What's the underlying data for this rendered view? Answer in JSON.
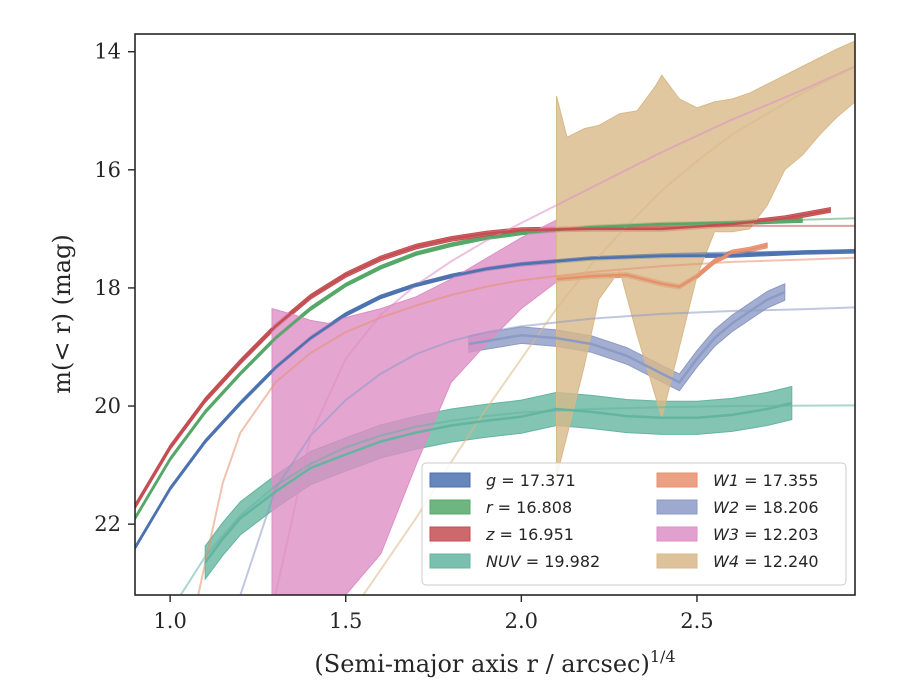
{
  "chart_data": {
    "type": "line",
    "xlabel": "(Semi-major axis r / arcsec)",
    "xlabel_superscript": "1/4",
    "ylabel": "m(< r) (mag)",
    "xlim": [
      0.9,
      2.95
    ],
    "ylim": [
      23.2,
      13.7
    ],
    "y_inverted": true,
    "xticks": [
      1.0,
      1.5,
      2.0,
      2.5
    ],
    "xtick_labels": [
      "1.0",
      "1.5",
      "2.0",
      "2.5"
    ],
    "yticks": [
      14,
      16,
      18,
      20,
      22
    ],
    "ytick_labels": [
      "14",
      "16",
      "18",
      "20",
      "22"
    ],
    "grid": false,
    "legend_position": "lower-right",
    "series": [
      {
        "name": "g = 17.371",
        "color": "#4c72b0",
        "model": [
          [
            0.9,
            22.4
          ],
          [
            1.0,
            21.4
          ],
          [
            1.1,
            20.6
          ],
          [
            1.2,
            19.95
          ],
          [
            1.3,
            19.35
          ],
          [
            1.4,
            18.85
          ],
          [
            1.5,
            18.45
          ],
          [
            1.6,
            18.15
          ],
          [
            1.7,
            17.95
          ],
          [
            1.8,
            17.8
          ],
          [
            1.9,
            17.67
          ],
          [
            2.0,
            17.58
          ],
          [
            2.2,
            17.48
          ],
          [
            2.4,
            17.43
          ],
          [
            2.6,
            17.4
          ],
          [
            2.95,
            17.37
          ]
        ],
        "data": [
          [
            0.9,
            22.4
          ],
          [
            1.0,
            21.4
          ],
          [
            1.1,
            20.6
          ],
          [
            1.2,
            19.95
          ],
          [
            1.3,
            19.35
          ],
          [
            1.4,
            18.85
          ],
          [
            1.5,
            18.45
          ],
          [
            1.6,
            18.15
          ],
          [
            1.7,
            17.95
          ],
          [
            1.8,
            17.8
          ],
          [
            1.9,
            17.68
          ],
          [
            2.0,
            17.6
          ],
          [
            2.2,
            17.5
          ],
          [
            2.4,
            17.46
          ],
          [
            2.6,
            17.45
          ],
          [
            2.8,
            17.4
          ],
          [
            2.95,
            17.38
          ]
        ],
        "band_halfwidth": 0.03
      },
      {
        "name": "r = 16.808",
        "color": "#55a868",
        "model": [
          [
            0.9,
            21.9
          ],
          [
            1.0,
            20.9
          ],
          [
            1.1,
            20.1
          ],
          [
            1.2,
            19.45
          ],
          [
            1.3,
            18.85
          ],
          [
            1.4,
            18.35
          ],
          [
            1.5,
            17.95
          ],
          [
            1.6,
            17.65
          ],
          [
            1.7,
            17.42
          ],
          [
            1.8,
            17.27
          ],
          [
            1.9,
            17.15
          ],
          [
            2.0,
            17.07
          ],
          [
            2.2,
            16.97
          ],
          [
            2.4,
            16.92
          ],
          [
            2.6,
            16.88
          ],
          [
            2.95,
            16.82
          ]
        ],
        "data": [
          [
            0.9,
            21.9
          ],
          [
            1.0,
            20.9
          ],
          [
            1.1,
            20.1
          ],
          [
            1.2,
            19.45
          ],
          [
            1.3,
            18.85
          ],
          [
            1.4,
            18.35
          ],
          [
            1.5,
            17.95
          ],
          [
            1.6,
            17.65
          ],
          [
            1.7,
            17.42
          ],
          [
            1.8,
            17.27
          ],
          [
            1.9,
            17.15
          ],
          [
            2.0,
            17.07
          ],
          [
            2.2,
            16.97
          ],
          [
            2.4,
            16.92
          ],
          [
            2.6,
            16.9
          ],
          [
            2.8,
            16.86
          ]
        ],
        "band_halfwidth": 0.03
      },
      {
        "name": "z = 16.951",
        "color": "#c44e52",
        "model": [
          [
            0.9,
            21.7
          ],
          [
            1.0,
            20.7
          ],
          [
            1.1,
            19.9
          ],
          [
            1.2,
            19.25
          ],
          [
            1.3,
            18.65
          ],
          [
            1.4,
            18.15
          ],
          [
            1.5,
            17.78
          ],
          [
            1.6,
            17.5
          ],
          [
            1.7,
            17.3
          ],
          [
            1.8,
            17.17
          ],
          [
            1.9,
            17.08
          ],
          [
            2.0,
            17.02
          ],
          [
            2.2,
            16.98
          ],
          [
            2.4,
            16.96
          ],
          [
            2.6,
            16.95
          ],
          [
            2.95,
            16.95
          ]
        ],
        "data": [
          [
            0.9,
            21.7
          ],
          [
            1.0,
            20.7
          ],
          [
            1.1,
            19.9
          ],
          [
            1.2,
            19.25
          ],
          [
            1.3,
            18.65
          ],
          [
            1.4,
            18.15
          ],
          [
            1.5,
            17.78
          ],
          [
            1.6,
            17.5
          ],
          [
            1.7,
            17.3
          ],
          [
            1.8,
            17.17
          ],
          [
            1.9,
            17.08
          ],
          [
            2.0,
            17.02
          ],
          [
            2.2,
            17.0
          ],
          [
            2.4,
            17.0
          ],
          [
            2.6,
            16.92
          ],
          [
            2.75,
            16.82
          ],
          [
            2.88,
            16.68
          ]
        ],
        "band_halfwidth": 0.04
      },
      {
        "name": "NUV = 19.982",
        "color": "#64b5a0",
        "model": [
          [
            1.03,
            23.2
          ],
          [
            1.1,
            22.55
          ],
          [
            1.2,
            21.85
          ],
          [
            1.3,
            21.35
          ],
          [
            1.4,
            20.98
          ],
          [
            1.5,
            20.7
          ],
          [
            1.6,
            20.5
          ],
          [
            1.7,
            20.35
          ],
          [
            1.8,
            20.25
          ],
          [
            1.9,
            20.17
          ],
          [
            2.0,
            20.11
          ],
          [
            2.2,
            20.05
          ],
          [
            2.4,
            20.02
          ],
          [
            2.6,
            20.0
          ],
          [
            2.95,
            19.99
          ]
        ],
        "data": [
          [
            1.1,
            22.65
          ],
          [
            1.15,
            22.25
          ],
          [
            1.2,
            21.9
          ],
          [
            1.3,
            21.45
          ],
          [
            1.4,
            21.05
          ],
          [
            1.5,
            20.82
          ],
          [
            1.6,
            20.6
          ],
          [
            1.7,
            20.45
          ],
          [
            1.8,
            20.33
          ],
          [
            1.9,
            20.25
          ],
          [
            2.0,
            20.18
          ],
          [
            2.1,
            20.05
          ],
          [
            2.2,
            20.1
          ],
          [
            2.3,
            20.17
          ],
          [
            2.4,
            20.2
          ],
          [
            2.5,
            20.2
          ],
          [
            2.6,
            20.15
          ],
          [
            2.7,
            20.05
          ],
          [
            2.77,
            19.95
          ]
        ],
        "band_halfwidth": 0.28
      },
      {
        "name": "W1 = 17.355",
        "color": "#e88f6e",
        "model": [
          [
            1.08,
            23.2
          ],
          [
            1.15,
            21.3
          ],
          [
            1.2,
            20.45
          ],
          [
            1.3,
            19.6
          ],
          [
            1.4,
            19.1
          ],
          [
            1.5,
            18.75
          ],
          [
            1.6,
            18.5
          ],
          [
            1.7,
            18.3
          ],
          [
            1.8,
            18.12
          ],
          [
            1.9,
            17.98
          ],
          [
            2.0,
            17.87
          ],
          [
            2.2,
            17.73
          ],
          [
            2.4,
            17.63
          ],
          [
            2.6,
            17.56
          ],
          [
            2.8,
            17.52
          ],
          [
            2.95,
            17.49
          ]
        ],
        "data": [
          [
            2.1,
            17.85
          ],
          [
            2.2,
            17.8
          ],
          [
            2.3,
            17.78
          ],
          [
            2.4,
            17.93
          ],
          [
            2.45,
            17.98
          ],
          [
            2.5,
            17.8
          ],
          [
            2.55,
            17.55
          ],
          [
            2.6,
            17.4
          ],
          [
            2.65,
            17.35
          ],
          [
            2.7,
            17.28
          ]
        ],
        "band_halfwidth": 0.04
      },
      {
        "name": "W2 = 18.206",
        "color": "#8c9ac6",
        "model": [
          [
            1.2,
            23.2
          ],
          [
            1.3,
            21.4
          ],
          [
            1.4,
            20.5
          ],
          [
            1.5,
            19.9
          ],
          [
            1.6,
            19.45
          ],
          [
            1.7,
            19.12
          ],
          [
            1.8,
            18.9
          ],
          [
            1.9,
            18.75
          ],
          [
            2.0,
            18.65
          ],
          [
            2.2,
            18.52
          ],
          [
            2.4,
            18.44
          ],
          [
            2.6,
            18.39
          ],
          [
            2.8,
            18.36
          ],
          [
            2.95,
            18.33
          ]
        ],
        "data": [
          [
            1.85,
            18.95
          ],
          [
            1.9,
            18.9
          ],
          [
            2.0,
            18.8
          ],
          [
            2.1,
            18.85
          ],
          [
            2.2,
            18.95
          ],
          [
            2.3,
            19.15
          ],
          [
            2.35,
            19.3
          ],
          [
            2.4,
            19.45
          ],
          [
            2.45,
            19.6
          ],
          [
            2.5,
            19.2
          ],
          [
            2.55,
            18.85
          ],
          [
            2.6,
            18.6
          ],
          [
            2.65,
            18.4
          ],
          [
            2.7,
            18.2
          ],
          [
            2.75,
            18.07
          ]
        ],
        "band_halfwidth": 0.14
      },
      {
        "name": "W3 = 12.203",
        "color": "#dd8fc5",
        "model": [
          [
            1.3,
            23.2
          ],
          [
            1.4,
            20.5
          ],
          [
            1.5,
            19.2
          ],
          [
            1.6,
            18.45
          ],
          [
            1.7,
            17.95
          ],
          [
            1.8,
            17.55
          ],
          [
            1.9,
            17.2
          ],
          [
            2.0,
            16.9
          ],
          [
            2.2,
            16.3
          ],
          [
            2.4,
            15.7
          ],
          [
            2.6,
            15.15
          ],
          [
            2.8,
            14.65
          ],
          [
            2.95,
            14.25
          ]
        ],
        "data": [
          [
            1.29,
            20.0
          ],
          [
            1.35,
            20.6
          ],
          [
            1.4,
            21.0
          ],
          [
            1.45,
            21.0
          ],
          [
            1.5,
            20.8
          ],
          [
            1.6,
            20.3
          ],
          [
            1.7,
            19.6
          ],
          [
            1.8,
            18.8
          ],
          [
            1.9,
            18.2
          ],
          [
            2.0,
            17.8
          ],
          [
            2.1,
            17.4
          ]
        ],
        "band_lower": [
          18.35,
          18.45,
          18.55,
          18.6,
          18.5,
          18.35,
          18.15,
          17.85,
          17.5,
          17.15,
          16.85
        ],
        "band_upper": [
          23.2,
          23.2,
          23.2,
          23.2,
          23.2,
          22.5,
          21.0,
          19.6,
          18.95,
          18.35,
          17.9
        ]
      },
      {
        "name": "W4 = 12.240",
        "color": "#d8b988",
        "model": [
          [
            1.55,
            23.2
          ],
          [
            1.7,
            21.9
          ],
          [
            1.8,
            20.95
          ],
          [
            1.9,
            20.05
          ],
          [
            2.0,
            19.2
          ],
          [
            2.1,
            18.35
          ],
          [
            2.2,
            17.6
          ],
          [
            2.3,
            16.95
          ],
          [
            2.4,
            16.35
          ],
          [
            2.5,
            15.85
          ],
          [
            2.6,
            15.4
          ],
          [
            2.7,
            15.05
          ],
          [
            2.8,
            14.7
          ],
          [
            2.95,
            14.25
          ]
        ],
        "data": [
          [
            2.1,
            18.4
          ],
          [
            2.13,
            18.2
          ],
          [
            2.18,
            17.8
          ],
          [
            2.22,
            17.4
          ],
          [
            2.28,
            16.9
          ],
          [
            2.33,
            16.8
          ],
          [
            2.38,
            17.3
          ],
          [
            2.4,
            17.4
          ],
          [
            2.45,
            16.8
          ],
          [
            2.5,
            16.3
          ],
          [
            2.55,
            16.2
          ],
          [
            2.6,
            16.1
          ],
          [
            2.65,
            16.0
          ],
          [
            2.7,
            15.5
          ],
          [
            2.75,
            15.1
          ],
          [
            2.8,
            14.9
          ],
          [
            2.85,
            14.5
          ],
          [
            2.9,
            14.2
          ],
          [
            2.95,
            14.0
          ]
        ],
        "band_lower": [
          14.75,
          15.45,
          15.3,
          15.25,
          15.05,
          15.0,
          14.6,
          14.4,
          14.8,
          14.95,
          14.85,
          14.8,
          14.7,
          14.55,
          14.4,
          14.25,
          14.1,
          13.95,
          13.82
        ],
        "band_upper": [
          21.2,
          20.5,
          19.3,
          18.2,
          17.7,
          18.8,
          19.8,
          20.2,
          19.0,
          17.8,
          17.05,
          17.05,
          17.0,
          16.6,
          16.0,
          15.75,
          15.4,
          15.1,
          14.85
        ]
      }
    ]
  }
}
